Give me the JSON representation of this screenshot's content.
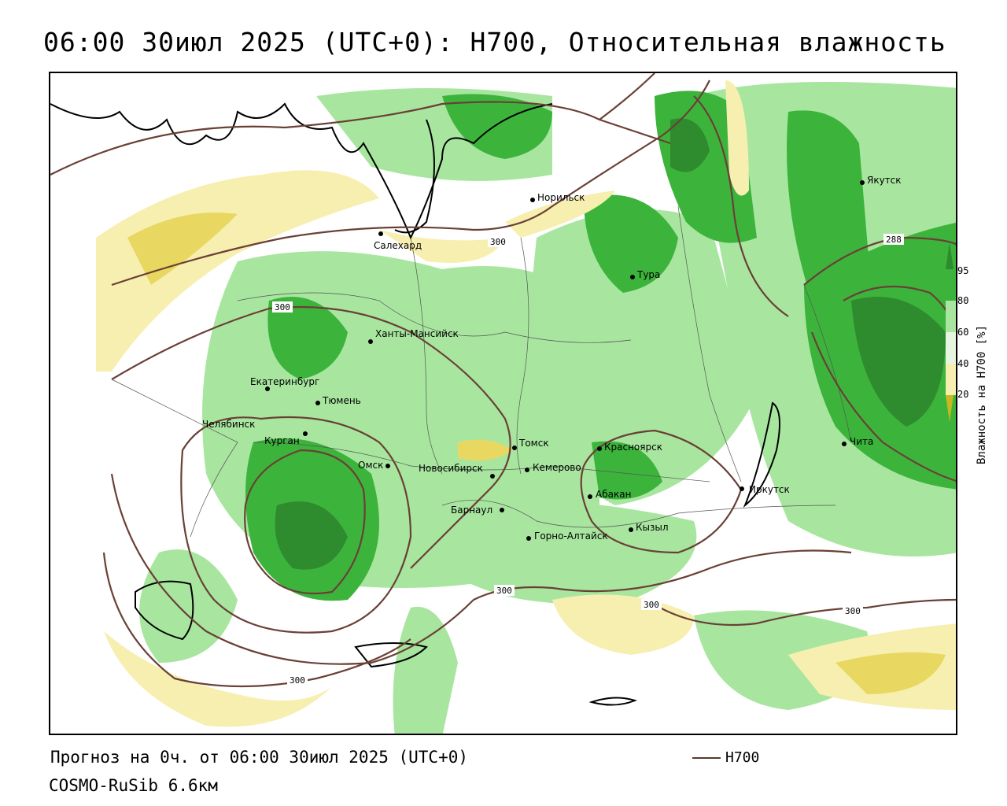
{
  "title": "06:00 30июл 2025 (UTC+0): H700, Относительная влажность",
  "footer": {
    "forecast": "Прогноз на 0ч. от 06:00 30июл 2025 (UTC+0)",
    "model": "COSMO-RuSib 6.6км",
    "contour_legend": "H700"
  },
  "colorbar": {
    "title": "Влажность на H700 [%]",
    "ticks": [
      "95",
      "80",
      "60",
      "40",
      "20"
    ],
    "colors": [
      "#2e8b2e",
      "#3cb43c",
      "#a8e6a0",
      "#e6f5e0",
      "#ffffff",
      "#f7efb0",
      "#e8d862",
      "#c8b820"
    ]
  },
  "contour_labels": [
    "300",
    "300",
    "300",
    "300",
    "300",
    "300",
    "288"
  ],
  "cities": [
    {
      "name": "Норильск"
    },
    {
      "name": "Якутск"
    },
    {
      "name": "Салехард"
    },
    {
      "name": "Тура"
    },
    {
      "name": "Ханты-Мансийск"
    },
    {
      "name": "Екатеринбург"
    },
    {
      "name": "Тюмень"
    },
    {
      "name": "Челябинск"
    },
    {
      "name": "Курган"
    },
    {
      "name": "Омск"
    },
    {
      "name": "Новосибирск"
    },
    {
      "name": "Томск"
    },
    {
      "name": "Кемерово"
    },
    {
      "name": "Красноярск"
    },
    {
      "name": "Барнаул"
    },
    {
      "name": "Абакан"
    },
    {
      "name": "Горно-Алтайск"
    },
    {
      "name": "Кызыл"
    },
    {
      "name": "Иркутск"
    },
    {
      "name": "Чита"
    }
  ]
}
